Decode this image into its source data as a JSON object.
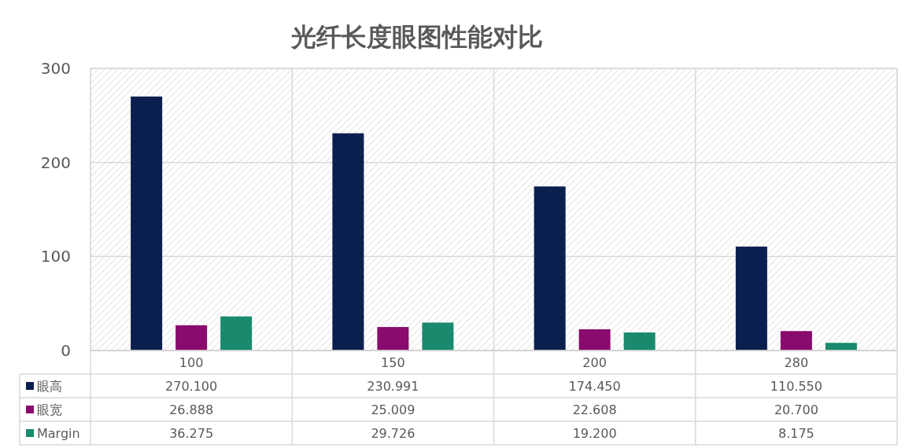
{
  "chart_data": {
    "type": "bar",
    "title": "光纤长度眼图性能对比",
    "categories": [
      "100",
      "150",
      "200",
      "280"
    ],
    "series": [
      {
        "name": "眼高",
        "color": "#0b1f4f",
        "values": [
          270.1,
          230.991,
          174.45,
          110.55
        ],
        "value_labels": [
          "270.100",
          "230.991",
          "174.450",
          "110.550"
        ]
      },
      {
        "name": "眼宽",
        "color": "#8b0a6e",
        "values": [
          26.888,
          25.009,
          22.608,
          20.7
        ],
        "value_labels": [
          "26.888",
          "25.009",
          "22.608",
          "20.700"
        ]
      },
      {
        "name": "Margin",
        "color": "#1a8a6e",
        "values": [
          36.275,
          29.726,
          19.2,
          8.175
        ],
        "value_labels": [
          "36.275",
          "29.726",
          "19.200",
          "8.175"
        ]
      }
    ],
    "ylim": [
      0,
      300
    ],
    "yticks": [
      0,
      100,
      200,
      300
    ],
    "grid": true,
    "legend": "bottom left"
  }
}
